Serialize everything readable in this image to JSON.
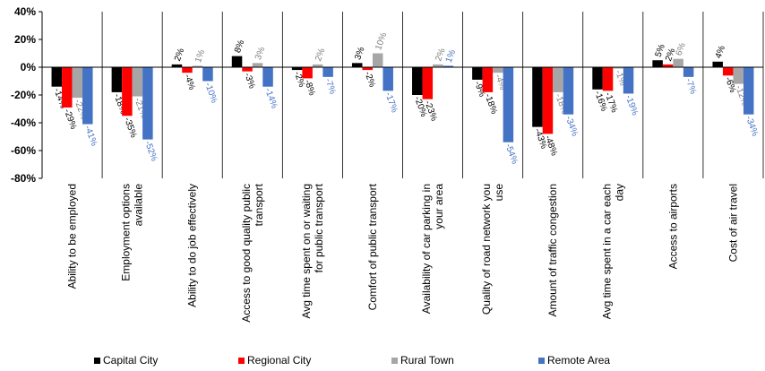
{
  "chart_data": {
    "type": "bar",
    "categories": [
      [
        "Ability to be employed"
      ],
      [
        "Employment options",
        "available"
      ],
      [
        "Ability to do job effectively"
      ],
      [
        "Access to good quality public",
        "transport"
      ],
      [
        "Avg time spent on or waiting",
        "for public transport"
      ],
      [
        "Comfort of public transport"
      ],
      [
        "Availability of car parking in",
        "your area"
      ],
      [
        "Quality of road network you",
        "use"
      ],
      [
        "Amount of traffic congestion"
      ],
      [
        "Avg time spent in a car each",
        "day"
      ],
      [
        "Access to airports"
      ],
      [
        "Cost of air travel"
      ]
    ],
    "series": [
      {
        "name": "Capital City",
        "color": "#000000",
        "values": [
          -14,
          -18,
          2,
          8,
          -2,
          3,
          -20,
          -9,
          -43,
          -16,
          5,
          4
        ]
      },
      {
        "name": "Regional City",
        "color": "#ff0000",
        "values": [
          -29,
          -35,
          -4,
          -3,
          -8,
          -2,
          -23,
          -18,
          -48,
          -17,
          2,
          -6
        ]
      },
      {
        "name": "Rural Town",
        "color": "#a6a6a6",
        "values": [
          -22,
          -21,
          1,
          3,
          2,
          10,
          2,
          -4,
          -18,
          -1,
          6,
          -12
        ]
      },
      {
        "name": "Remote Area",
        "color": "#4472c4",
        "values": [
          -41,
          -52,
          -10,
          -14,
          -7,
          -17,
          1,
          -54,
          -34,
          -19,
          -7,
          -34
        ]
      }
    ],
    "label_colors": [
      "#000000",
      "#000000",
      "#7f7f7f",
      "#4472c4"
    ],
    "ylim": [
      -80,
      40
    ],
    "yticks": [
      -80,
      -60,
      -40,
      -20,
      0,
      20,
      40
    ],
    "tick_suffix": "%",
    "legend_position": "bottom",
    "grid": false
  }
}
